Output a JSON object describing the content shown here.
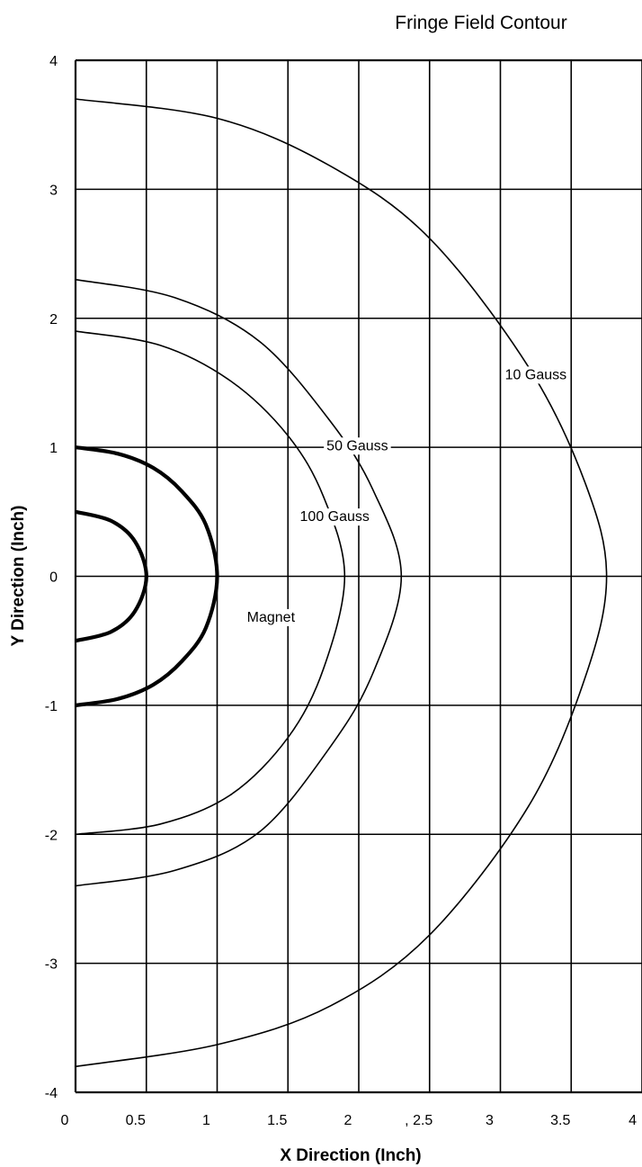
{
  "chart_data": {
    "type": "line",
    "title": "Fringe Field Contour",
    "xlabel": "X Direction (Inch)",
    "ylabel": "Y Direction (Inch)",
    "xlim": [
      0,
      4
    ],
    "ylim": [
      -4,
      4
    ],
    "grid": true,
    "x_ticks": [
      {
        "value": 0,
        "label": "0"
      },
      {
        "value": 0.5,
        "label": "0.5"
      },
      {
        "value": 1,
        "label": "1"
      },
      {
        "value": 1.5,
        "label": "1.5"
      },
      {
        "value": 2,
        "label": "2"
      },
      {
        "value": 2.5,
        "label": ", 2.5"
      },
      {
        "value": 3,
        "label": "3"
      },
      {
        "value": 3.5,
        "label": "3.5"
      },
      {
        "value": 4,
        "label": "4"
      }
    ],
    "y_ticks": [
      {
        "value": 4,
        "label": "4"
      },
      {
        "value": 3,
        "label": "3"
      },
      {
        "value": 2,
        "label": "2"
      },
      {
        "value": 1,
        "label": "1"
      },
      {
        "value": 0,
        "label": "0"
      },
      {
        "value": -1,
        "label": "-1"
      },
      {
        "value": -2,
        "label": "-2"
      },
      {
        "value": -3,
        "label": "-3"
      },
      {
        "value": -4,
        "label": "-4"
      }
    ],
    "series": [
      {
        "name": "Magnet",
        "style": "thick",
        "x": [
          0,
          0.25,
          0.42,
          0.5,
          0.42,
          0.25,
          0
        ],
        "y": [
          0.5,
          0.43,
          0.27,
          0,
          -0.27,
          -0.43,
          -0.5
        ]
      },
      {
        "name": "Magnet",
        "style": "thick",
        "x": [
          0,
          0.3,
          0.55,
          0.75,
          0.92,
          1.0,
          0.92,
          0.75,
          0.55,
          0.3,
          0
        ],
        "y": [
          1.0,
          0.95,
          0.84,
          0.66,
          0.4,
          0,
          -0.4,
          -0.66,
          -0.84,
          -0.95,
          -1.0
        ]
      },
      {
        "name": "100 Gauss",
        "style": "thin",
        "x": [
          0,
          0.6,
          1.1,
          1.5,
          1.75,
          1.9,
          1.75,
          1.5,
          1.1,
          0.6,
          0
        ],
        "y": [
          1.9,
          1.79,
          1.51,
          1.09,
          0.62,
          0,
          -0.72,
          -1.25,
          -1.69,
          -1.92,
          -2.0
        ]
      },
      {
        "name": "50 Gauss",
        "style": "thin",
        "x": [
          0,
          0.7,
          1.3,
          1.8,
          2.1,
          2.3,
          2.1,
          1.8,
          1.3,
          0.7,
          0
        ],
        "y": [
          2.3,
          2.16,
          1.82,
          1.2,
          0.67,
          0,
          -0.75,
          -1.32,
          -1.98,
          -2.28,
          -2.4
        ]
      },
      {
        "name": "10 Gauss",
        "style": "thin",
        "x": [
          0,
          1.0,
          1.8,
          2.5,
          3.2,
          3.6,
          3.75,
          3.6,
          3.2,
          2.5,
          1.8,
          1.0,
          0
        ],
        "y": [
          3.7,
          3.55,
          3.18,
          2.62,
          1.62,
          0.72,
          0,
          -0.78,
          -1.78,
          -2.78,
          -3.33,
          -3.63,
          -3.8
        ]
      }
    ],
    "labels": [
      {
        "text": "10 Gauss",
        "x": 3.25,
        "y": 1.57
      },
      {
        "text": "50 Gauss",
        "x": 1.99,
        "y": 1.02
      },
      {
        "text": "100 Gauss",
        "x": 1.83,
        "y": 0.47
      },
      {
        "text": "Magnet",
        "x": 1.38,
        "y": -0.31
      }
    ]
  }
}
